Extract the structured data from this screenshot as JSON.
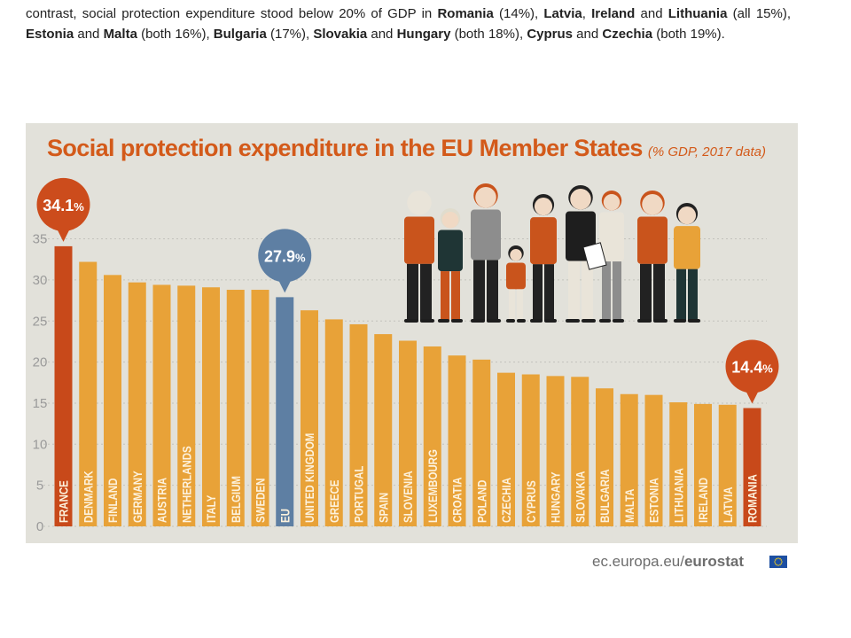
{
  "intro": {
    "line1_start": "contrast, social protection expenditure stood below 20% of GDP in ",
    "romania": "Romania",
    "romania_val": " (14%), ",
    "latvia": "Latvia",
    "comma1": ", ",
    "ireland": "Ireland",
    "and1": " and ",
    "lithuania": "Lithuania",
    "line2_a": " (all 15%), ",
    "estonia": "Estonia",
    "and2": " and ",
    "malta": "Malta",
    "both16": " (both 16%), ",
    "bulgaria": "Bulgaria",
    "v17": " (17%), ",
    "slovakia": "Slovakia",
    "and3": " and ",
    "hungary": "Hungary",
    "both18": " (both 18%), ",
    "cyprus": "Cyprus",
    "and4": " and ",
    "czechia": "Czechia",
    "both19": " (both 19%)."
  },
  "chart_data": {
    "type": "bar",
    "title": "Social protection expenditure in the EU Member States",
    "subtitle": "(% GDP, 2017 data)",
    "ylim": [
      0,
      35
    ],
    "yticks": [
      "0",
      "5",
      "10",
      "15",
      "20",
      "25",
      "30",
      "35"
    ],
    "grid": true,
    "categories": [
      "FRANCE",
      "DENMARK",
      "FINLAND",
      "GERMANY",
      "AUSTRIA",
      "NETHERLANDS",
      "ITALY",
      "BELGIUM",
      "SWEDEN",
      "EU",
      "UNITED KINGDOM",
      "GREECE",
      "PORTUGAL",
      "SPAIN",
      "SLOVENIA",
      "LUXEMBOURG",
      "CROATIA",
      "POLAND",
      "CZECHIA",
      "CYPRUS",
      "HUNGARY",
      "SLOVAKIA",
      "BULGARIA",
      "MALTA",
      "ESTONIA",
      "LITHUANIA",
      "IRELAND",
      "LATVIA",
      "ROMANIA"
    ],
    "values": [
      34.1,
      32.2,
      30.6,
      29.7,
      29.4,
      29.3,
      29.1,
      28.8,
      28.8,
      27.9,
      26.3,
      25.2,
      24.6,
      23.4,
      22.6,
      21.9,
      20.8,
      20.3,
      18.7,
      18.5,
      18.3,
      18.2,
      16.8,
      16.1,
      16.0,
      15.1,
      14.9,
      14.8,
      14.4
    ],
    "callouts": [
      {
        "index": 0,
        "num": "34.1",
        "pct": "%"
      },
      {
        "index": 9,
        "num": "27.9",
        "pct": "%"
      },
      {
        "index": 28,
        "num": "14.4",
        "pct": "%"
      }
    ],
    "colors": {
      "bar": "#e8a238",
      "highlight": "#c8491a",
      "eu": "#5e7fa3",
      "callout_orange": "#cc4c1c",
      "callout_blue": "#5e7fa3",
      "panel": "#e2e1da",
      "axis_text": "#9a9a9a",
      "title": "#d35a1a",
      "bar_label": "#fdf2dd"
    }
  },
  "illustration": {
    "figure_count": 10,
    "icon": "group-of-people-illustration"
  },
  "source": {
    "domain": "ec.europa.eu/",
    "brand": "eurostat",
    "flag_icon": "eu-flag-icon"
  }
}
